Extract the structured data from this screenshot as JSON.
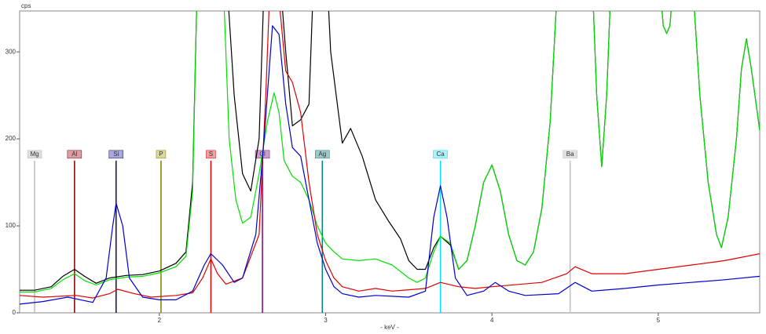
{
  "chart_data": {
    "type": "line",
    "y_label": "cps",
    "x_label": "- keV -",
    "xlim": [
      1.16,
      5.61
    ],
    "ylim": [
      0,
      347
    ],
    "xticks": [
      2,
      3,
      4,
      5
    ],
    "yticks": [
      0,
      100,
      200,
      300
    ],
    "series": [
      {
        "color": "#000000",
        "x": [
          1.16,
          1.25,
          1.35,
          1.42,
          1.49,
          1.55,
          1.62,
          1.7,
          1.8,
          1.9,
          2.0,
          2.1,
          2.16,
          2.2,
          2.23,
          2.4,
          2.45,
          2.5,
          2.55,
          2.6,
          2.63,
          2.68,
          2.72,
          2.76,
          2.8,
          2.85,
          2.9,
          2.93,
          3.0,
          3.03,
          3.1,
          3.15,
          3.22,
          3.3,
          3.38,
          3.45,
          3.5,
          3.55,
          3.6,
          3.65,
          3.69,
          3.75,
          3.8,
          3.85,
          3.9,
          3.95,
          4.0,
          4.05,
          4.1,
          4.15,
          4.2,
          4.25,
          4.3,
          4.35,
          4.4,
          4.6,
          4.63,
          4.66,
          4.69,
          4.72,
          5.0,
          5.03,
          5.05,
          5.07,
          5.1,
          5.2,
          5.25,
          5.3,
          5.35,
          5.38,
          5.42,
          5.47,
          5.5,
          5.53,
          5.56,
          5.61
        ],
        "values": [
          26,
          26,
          30,
          42,
          50,
          42,
          34,
          40,
          43,
          44,
          48,
          57,
          70,
          150,
          400,
          400,
          250,
          160,
          140,
          200,
          380,
          420,
          400,
          300,
          215,
          222,
          240,
          400,
          420,
          300,
          195,
          212,
          180,
          130,
          105,
          85,
          60,
          50,
          50,
          75,
          88,
          78,
          50,
          60,
          100,
          150,
          170,
          140,
          90,
          60,
          55,
          70,
          120,
          220,
          400,
          400,
          250,
          168,
          250,
          400,
          400,
          330,
          321,
          330,
          400,
          400,
          250,
          150,
          90,
          75,
          110,
          200,
          280,
          315,
          280,
          210
        ]
      },
      {
        "color": "#00e000",
        "x": [
          1.16,
          1.25,
          1.35,
          1.42,
          1.49,
          1.55,
          1.62,
          1.7,
          1.8,
          1.9,
          2.0,
          2.1,
          2.16,
          2.2,
          2.23,
          2.38,
          2.42,
          2.46,
          2.5,
          2.55,
          2.6,
          2.65,
          2.69,
          2.72,
          2.75,
          2.8,
          2.85,
          2.9,
          2.95,
          3.0,
          3.05,
          3.1,
          3.2,
          3.3,
          3.4,
          3.5,
          3.55,
          3.6,
          3.65,
          3.69,
          3.75,
          3.8,
          3.85,
          3.9,
          3.95,
          4.0,
          4.05,
          4.1,
          4.15,
          4.2,
          4.25,
          4.3,
          4.35,
          4.4,
          4.6,
          4.63,
          4.66,
          4.69,
          4.72,
          5.0,
          5.03,
          5.05,
          5.07,
          5.1,
          5.2,
          5.25,
          5.3,
          5.35,
          5.38,
          5.42,
          5.47,
          5.5,
          5.53,
          5.56,
          5.61
        ],
        "values": [
          24,
          24,
          28,
          38,
          45,
          37,
          32,
          38,
          41,
          42,
          46,
          53,
          65,
          140,
          400,
          400,
          200,
          130,
          103,
          110,
          160,
          220,
          253,
          230,
          175,
          157,
          150,
          130,
          100,
          80,
          70,
          62,
          60,
          62,
          55,
          40,
          35,
          40,
          70,
          88,
          80,
          50,
          60,
          100,
          150,
          170,
          140,
          90,
          60,
          55,
          70,
          120,
          220,
          400,
          400,
          250,
          168,
          250,
          400,
          400,
          330,
          321,
          330,
          400,
          400,
          250,
          150,
          90,
          75,
          110,
          200,
          280,
          315,
          280,
          210
        ]
      },
      {
        "color": "#e00000",
        "x": [
          1.16,
          1.3,
          1.5,
          1.6,
          1.7,
          1.75,
          1.85,
          1.95,
          2.1,
          2.2,
          2.26,
          2.31,
          2.35,
          2.4,
          2.5,
          2.6,
          2.64,
          2.67,
          2.72,
          2.76,
          2.8,
          2.85,
          2.9,
          2.95,
          3.0,
          3.05,
          3.1,
          3.2,
          3.3,
          3.4,
          3.6,
          3.69,
          3.8,
          3.9,
          4.0,
          4.3,
          4.45,
          4.5,
          4.6,
          4.8,
          5.0,
          5.2,
          5.4,
          5.61
        ],
        "values": [
          20,
          18,
          20,
          17,
          22,
          27,
          22,
          18,
          20,
          23,
          40,
          62,
          45,
          33,
          40,
          90,
          250,
          400,
          360,
          278,
          265,
          230,
          150,
          90,
          60,
          40,
          30,
          25,
          28,
          25,
          28,
          35,
          30,
          28,
          30,
          35,
          45,
          53,
          45,
          45,
          50,
          55,
          60,
          68
        ]
      },
      {
        "color": "#0000d0",
        "x": [
          1.16,
          1.3,
          1.45,
          1.6,
          1.68,
          1.72,
          1.74,
          1.78,
          1.82,
          1.9,
          2.0,
          2.1,
          2.2,
          2.27,
          2.31,
          2.38,
          2.45,
          2.5,
          2.58,
          2.63,
          2.68,
          2.72,
          2.76,
          2.8,
          2.85,
          2.9,
          2.95,
          3.0,
          3.05,
          3.1,
          3.2,
          3.3,
          3.5,
          3.6,
          3.65,
          3.69,
          3.73,
          3.78,
          3.85,
          3.95,
          4.02,
          4.1,
          4.2,
          4.4,
          4.5,
          4.6,
          4.8,
          5.0,
          5.2,
          5.4,
          5.61
        ],
        "values": [
          10,
          13,
          18,
          12,
          40,
          100,
          126,
          100,
          40,
          18,
          15,
          15,
          25,
          55,
          68,
          55,
          35,
          40,
          90,
          200,
          330,
          320,
          240,
          190,
          180,
          130,
          80,
          50,
          30,
          22,
          18,
          20,
          18,
          25,
          110,
          146,
          110,
          40,
          20,
          25,
          35,
          25,
          20,
          22,
          35,
          25,
          28,
          32,
          35,
          38,
          42
        ]
      }
    ],
    "markers": [
      {
        "label": "Mg",
        "energy": 1.25,
        "height": 175,
        "color": "#bbbbbb",
        "label_color": "#dddddd"
      },
      {
        "label": "Al",
        "energy": 1.49,
        "height": 175,
        "color": "#800000",
        "label_color": "#d8a0a0"
      },
      {
        "label": "Si",
        "energy": 1.74,
        "height": 175,
        "color": "#101040",
        "label_color": "#a8a8dc"
      },
      {
        "label": "P",
        "energy": 2.01,
        "height": 175,
        "color": "#808000",
        "label_color": "#d8d8a0"
      },
      {
        "label": "S",
        "energy": 2.31,
        "height": 175,
        "color": "#e00000",
        "label_color": "#f0a0a0"
      },
      {
        "label": "Cl",
        "energy": 2.62,
        "height": 175,
        "color": "#800080",
        "label_color": "#c8a0c8"
      },
      {
        "label": "Ag",
        "energy": 2.98,
        "height": 175,
        "color": "#008080",
        "label_color": "#a0c8c8"
      },
      {
        "label": "Ca",
        "energy": 3.69,
        "height": 175,
        "color": "#00e0ff",
        "label_color": "#b0f0f8"
      },
      {
        "label": "Ba",
        "energy": 4.47,
        "height": 175,
        "color": "#c0c0c0",
        "label_color": "#e0e0e0"
      }
    ]
  }
}
